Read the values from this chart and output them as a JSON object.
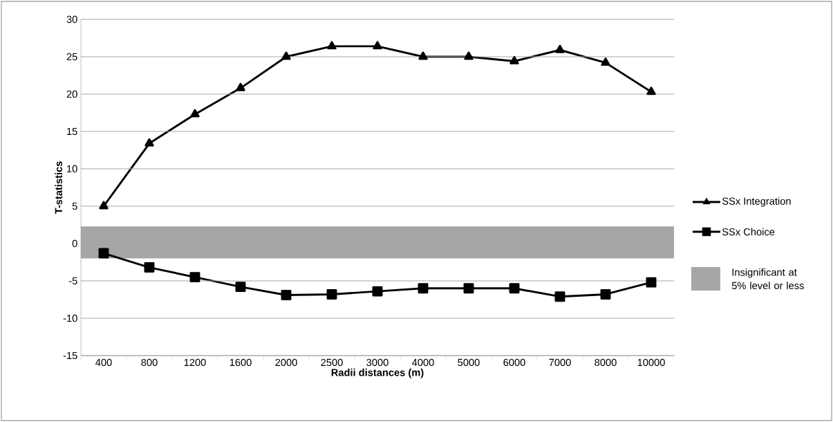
{
  "chart_data": {
    "type": "line",
    "xlabel": "Radii distances (m)",
    "ylabel": "T-statistics",
    "categories": [
      "400",
      "800",
      "1200",
      "1600",
      "2000",
      "2500",
      "3000",
      "4000",
      "5000",
      "6000",
      "7000",
      "8000",
      "10000"
    ],
    "series": [
      {
        "name": "SSx Integration",
        "color": "#000000",
        "marker": "triangle",
        "values": [
          5.0,
          13.4,
          17.3,
          20.8,
          25.0,
          26.4,
          26.4,
          25.0,
          25.0,
          24.4,
          25.9,
          24.2,
          20.3
        ]
      },
      {
        "name": "SSx Choice",
        "color": "#000000",
        "marker": "square",
        "values": [
          -1.3,
          -3.2,
          -4.5,
          -5.8,
          -6.9,
          -6.8,
          -6.4,
          -6.0,
          -6.0,
          -6.0,
          -7.1,
          -6.8,
          -5.2
        ]
      }
    ],
    "bands": [
      {
        "axis": "y",
        "from": -2.0,
        "to": 2.3,
        "label": "Insignificant at 5% level or less",
        "color": "#a6a6a6"
      }
    ],
    "ylim": [
      -15,
      30
    ],
    "yticks": [
      -15,
      -10,
      -5,
      0,
      5,
      10,
      15,
      20,
      25,
      30
    ],
    "grid": "y",
    "legend": "right",
    "line_style": "solid"
  }
}
